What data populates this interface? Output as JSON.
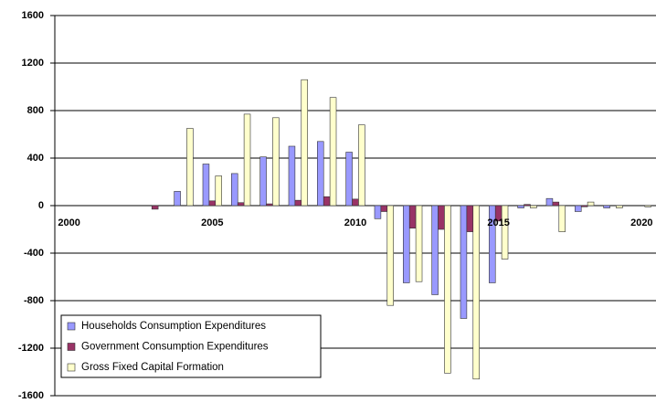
{
  "chart_data": {
    "type": "bar",
    "categories": [
      "2000",
      null,
      null,
      null,
      null,
      "2005",
      null,
      null,
      null,
      null,
      "2010",
      null,
      null,
      null,
      null,
      "2015",
      null,
      null,
      null,
      null,
      "2020"
    ],
    "series": [
      {
        "name": "Households Consumption Expenditures",
        "color": "#9999ff",
        "values": [
          0,
          0,
          0,
          0,
          120,
          350,
          270,
          410,
          500,
          540,
          450,
          -110,
          -650,
          -750,
          -950,
          -650,
          -20,
          60,
          -50,
          -20,
          0
        ]
      },
      {
        "name": "Government Consumption Expenditures",
        "color": "#993366",
        "values": [
          0,
          0,
          0,
          -30,
          0,
          40,
          25,
          15,
          45,
          75,
          55,
          -50,
          -190,
          -200,
          -220,
          -130,
          10,
          30,
          -10,
          0,
          0
        ]
      },
      {
        "name": "Gross Fixed Capital Formation",
        "color": "#ffffcc",
        "values": [
          0,
          0,
          0,
          0,
          650,
          250,
          770,
          740,
          1060,
          910,
          680,
          -840,
          -640,
          -1410,
          -1460,
          -450,
          -20,
          -220,
          30,
          -20,
          -10
        ]
      }
    ],
    "ylim": [
      -1600,
      1600
    ],
    "yticks": [
      -1600,
      -1200,
      -800,
      -400,
      0,
      400,
      800,
      1200,
      1600
    ],
    "grid": true,
    "legend": "lower-left"
  }
}
